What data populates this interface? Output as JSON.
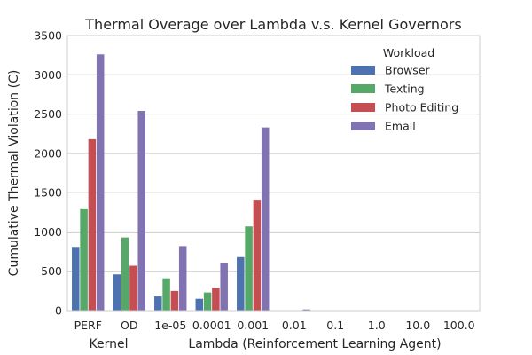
{
  "chart_data": {
    "type": "bar",
    "title": "Thermal Overage over Lambda v.s. Kernel Governors",
    "ylabel": "Cumulative Thermal Violation (C)",
    "group_labels": [
      "Kernel",
      "Lambda (Reinforcement Learning Agent)"
    ],
    "categories": [
      "PERF",
      "OD",
      "1e-05",
      "0.0001",
      "0.001",
      "0.01",
      "0.1",
      "1.0",
      "10.0",
      "100.0"
    ],
    "category_groups": [
      0,
      0,
      1,
      1,
      1,
      1,
      1,
      1,
      1,
      1
    ],
    "ylim": [
      0,
      3500
    ],
    "yticks": [
      0,
      500,
      1000,
      1500,
      2000,
      2500,
      3000,
      3500
    ],
    "grid": true,
    "legend": {
      "title": "Workload",
      "placement": "top-right"
    },
    "series": [
      {
        "name": "Browser",
        "color": "#4c72b0",
        "values": [
          810,
          460,
          180,
          150,
          680,
          2,
          2,
          2,
          2,
          2
        ]
      },
      {
        "name": "Texting",
        "color": "#55a868",
        "values": [
          1300,
          930,
          410,
          230,
          1070,
          3,
          2,
          2,
          2,
          2
        ]
      },
      {
        "name": "Photo Editing",
        "color": "#c44e52",
        "values": [
          2180,
          570,
          250,
          290,
          1410,
          3,
          3,
          2,
          2,
          2
        ]
      },
      {
        "name": "Email",
        "color": "#8172b2",
        "values": [
          3260,
          2540,
          820,
          610,
          2330,
          15,
          5,
          3,
          3,
          3
        ]
      }
    ]
  }
}
